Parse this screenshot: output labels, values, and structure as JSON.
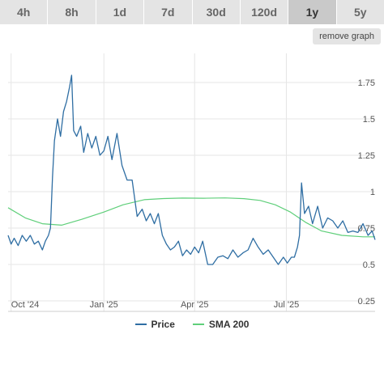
{
  "tabs": [
    {
      "label": "4h",
      "active": false
    },
    {
      "label": "8h",
      "active": false
    },
    {
      "label": "1d",
      "active": false
    },
    {
      "label": "7d",
      "active": false
    },
    {
      "label": "30d",
      "active": false
    },
    {
      "label": "120d",
      "active": false
    },
    {
      "label": "1y",
      "active": true
    },
    {
      "label": "5y",
      "active": false
    }
  ],
  "remove_graph_label": "remove graph",
  "colors": {
    "price": "#2f6ea3",
    "sma": "#5fcf7a",
    "grid": "#e6e6e6",
    "axis_text": "#555555"
  },
  "chart_data": {
    "type": "line",
    "x_tick_labels": [
      "Oct '24",
      "Jan '25",
      "Apr '25",
      "Jul '25"
    ],
    "x_tick_dates": [
      "2024-10-01",
      "2025-01-01",
      "2025-04-01",
      "2025-07-01"
    ],
    "x_range": [
      "2024-09-28",
      "2025-09-27"
    ],
    "y_ticks": [
      0.25,
      0.5,
      0.75,
      1,
      1.25,
      1.5,
      1.75
    ],
    "y_tick_labels": [
      "0.25",
      "0.5",
      "0.75",
      "1",
      "1.25",
      "1.5",
      "1.75"
    ],
    "ylim": [
      0.2,
      1.95
    ],
    "grid": true,
    "legend_position": "bottom-center",
    "series": [
      {
        "name": "Price",
        "x": [
          "2024-09-28",
          "2024-10-01",
          "2024-10-04",
          "2024-10-08",
          "2024-10-12",
          "2024-10-16",
          "2024-10-20",
          "2024-10-24",
          "2024-10-28",
          "2024-11-01",
          "2024-11-04",
          "2024-11-07",
          "2024-11-09",
          "2024-11-11",
          "2024-11-13",
          "2024-11-16",
          "2024-11-19",
          "2024-11-22",
          "2024-11-25",
          "2024-11-28",
          "2024-11-30",
          "2024-12-02",
          "2024-12-05",
          "2024-12-09",
          "2024-12-12",
          "2024-12-16",
          "2024-12-20",
          "2024-12-24",
          "2024-12-28",
          "2025-01-01",
          "2025-01-05",
          "2025-01-09",
          "2025-01-14",
          "2025-01-19",
          "2025-01-24",
          "2025-01-29",
          "2025-02-03",
          "2025-02-08",
          "2025-02-12",
          "2025-02-16",
          "2025-02-20",
          "2025-02-24",
          "2025-02-28",
          "2025-03-04",
          "2025-03-08",
          "2025-03-12",
          "2025-03-16",
          "2025-03-20",
          "2025-03-24",
          "2025-03-28",
          "2025-04-01",
          "2025-04-05",
          "2025-04-09",
          "2025-04-14",
          "2025-04-19",
          "2025-04-24",
          "2025-04-29",
          "2025-05-04",
          "2025-05-09",
          "2025-05-14",
          "2025-05-19",
          "2025-05-24",
          "2025-05-29",
          "2025-06-03",
          "2025-06-08",
          "2025-06-13",
          "2025-06-18",
          "2025-06-23",
          "2025-06-28",
          "2025-07-02",
          "2025-07-06",
          "2025-07-09",
          "2025-07-12",
          "2025-07-14",
          "2025-07-16",
          "2025-07-19",
          "2025-07-23",
          "2025-07-27",
          "2025-08-01",
          "2025-08-06",
          "2025-08-11",
          "2025-08-16",
          "2025-08-21",
          "2025-08-26",
          "2025-08-31",
          "2025-09-05",
          "2025-09-10",
          "2025-09-15",
          "2025-09-20",
          "2025-09-24",
          "2025-09-27"
        ],
        "values": [
          0.7,
          0.64,
          0.68,
          0.63,
          0.7,
          0.66,
          0.7,
          0.64,
          0.66,
          0.6,
          0.66,
          0.7,
          0.75,
          1.1,
          1.35,
          1.5,
          1.38,
          1.55,
          1.62,
          1.72,
          1.8,
          1.42,
          1.38,
          1.45,
          1.27,
          1.4,
          1.3,
          1.38,
          1.25,
          1.28,
          1.38,
          1.22,
          1.4,
          1.18,
          1.08,
          1.08,
          0.83,
          0.88,
          0.8,
          0.85,
          0.78,
          0.85,
          0.7,
          0.64,
          0.6,
          0.62,
          0.66,
          0.56,
          0.6,
          0.57,
          0.62,
          0.58,
          0.66,
          0.5,
          0.5,
          0.55,
          0.56,
          0.54,
          0.6,
          0.55,
          0.58,
          0.6,
          0.68,
          0.62,
          0.57,
          0.6,
          0.55,
          0.5,
          0.55,
          0.51,
          0.55,
          0.55,
          0.62,
          0.7,
          1.06,
          0.85,
          0.9,
          0.78,
          0.9,
          0.75,
          0.82,
          0.8,
          0.75,
          0.8,
          0.72,
          0.73,
          0.72,
          0.78,
          0.7,
          0.73,
          0.67
        ]
      },
      {
        "name": "SMA 200",
        "x": [
          "2024-09-28",
          "2024-10-15",
          "2024-11-01",
          "2024-11-20",
          "2024-12-10",
          "2025-01-01",
          "2025-01-20",
          "2025-02-10",
          "2025-03-01",
          "2025-03-20",
          "2025-04-10",
          "2025-05-01",
          "2025-05-20",
          "2025-06-05",
          "2025-06-20",
          "2025-07-05",
          "2025-07-20",
          "2025-08-05",
          "2025-08-25",
          "2025-09-15",
          "2025-09-27"
        ],
        "values": [
          0.89,
          0.82,
          0.78,
          0.77,
          0.81,
          0.86,
          0.91,
          0.945,
          0.953,
          0.956,
          0.955,
          0.957,
          0.952,
          0.94,
          0.91,
          0.86,
          0.79,
          0.73,
          0.7,
          0.69,
          0.69
        ]
      }
    ]
  }
}
